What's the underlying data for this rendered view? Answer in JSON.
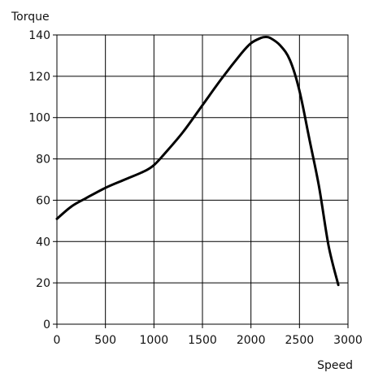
{
  "chart_data": {
    "type": "line",
    "xlabel": "Speed",
    "ylabel": "Torque",
    "xlim": [
      0,
      3000
    ],
    "ylim": [
      0,
      140
    ],
    "x_ticks": [
      0,
      500,
      1000,
      1500,
      2000,
      2500,
      3000
    ],
    "y_ticks": [
      0,
      20,
      40,
      60,
      80,
      100,
      120,
      140
    ],
    "grid": true,
    "line_color": "#000000",
    "series": [
      {
        "x": [
          0,
          150,
          300,
          500,
          700,
          900,
          1000,
          1100,
          1300,
          1500,
          1700,
          1900,
          2000,
          2100,
          2150,
          2200,
          2300,
          2400,
          2500,
          2600,
          2700,
          2800,
          2900
        ],
        "y": [
          51,
          57,
          61,
          66,
          70,
          74,
          77,
          82,
          93,
          106,
          119,
          131,
          136,
          138.5,
          139,
          138.5,
          135,
          128,
          113,
          90,
          67,
          38,
          19
        ]
      }
    ]
  }
}
